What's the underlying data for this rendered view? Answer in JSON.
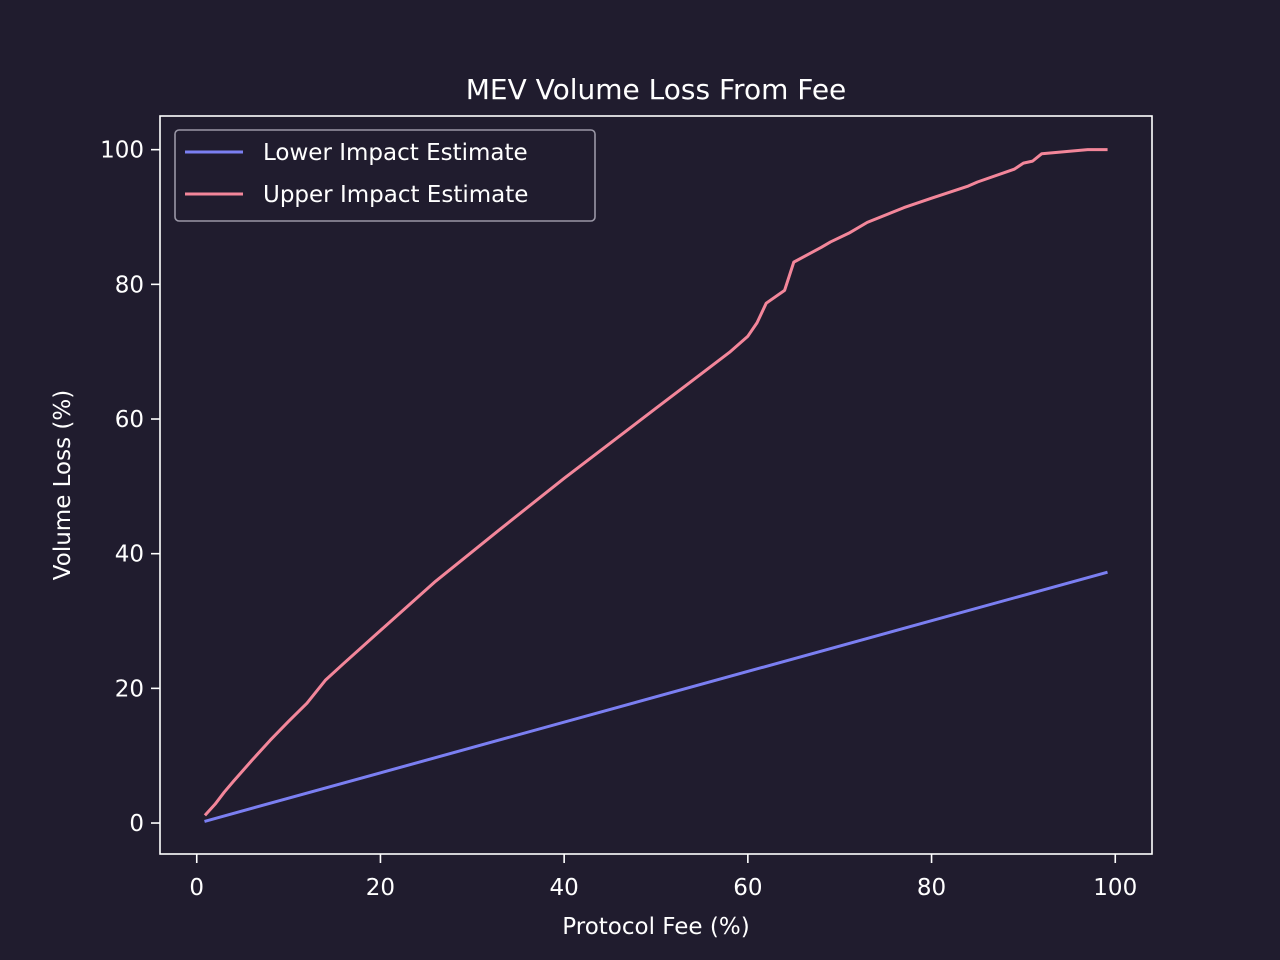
{
  "colors": {
    "background": "#201c2e",
    "axes": "#ffffff",
    "lower_series": "#7b7ff2",
    "upper_series": "#f3869a"
  },
  "chart_data": {
    "type": "line",
    "title": "MEV Volume Loss From Fee",
    "xlabel": "Protocol Fee (%)",
    "ylabel": "Volume Loss (%)",
    "xlim": [
      -4,
      104
    ],
    "ylim": [
      -4.6,
      105
    ],
    "xticks": [
      0,
      20,
      40,
      60,
      80,
      100
    ],
    "yticks": [
      0,
      20,
      40,
      60,
      80,
      100
    ],
    "grid": false,
    "legend_position": "top-left",
    "series": [
      {
        "name": "Lower Impact Estimate",
        "color": "#7b7ff2",
        "x": [
          1,
          99
        ],
        "y": [
          0.3,
          37.2
        ]
      },
      {
        "name": "Upper Impact Estimate",
        "color": "#f3869a",
        "x": [
          1,
          2,
          3,
          4,
          6,
          8,
          10,
          12,
          14,
          16,
          20,
          26,
          33,
          40,
          50,
          58,
          60,
          61,
          62,
          64,
          65,
          68,
          69,
          71,
          73,
          77,
          80,
          84,
          85,
          89,
          90,
          91,
          92,
          97,
          99
        ],
        "y": [
          1.3,
          2.8,
          4.6,
          6.2,
          9.3,
          12.3,
          15.1,
          17.8,
          21.2,
          23.7,
          28.6,
          35.9,
          43.6,
          51.2,
          61.6,
          69.9,
          72.3,
          74.3,
          77.2,
          79.1,
          83.3,
          85.5,
          86.3,
          87.6,
          89.2,
          91.4,
          92.8,
          94.6,
          95.2,
          97.1,
          98.0,
          98.3,
          99.4,
          100.0,
          100.0
        ]
      }
    ]
  }
}
